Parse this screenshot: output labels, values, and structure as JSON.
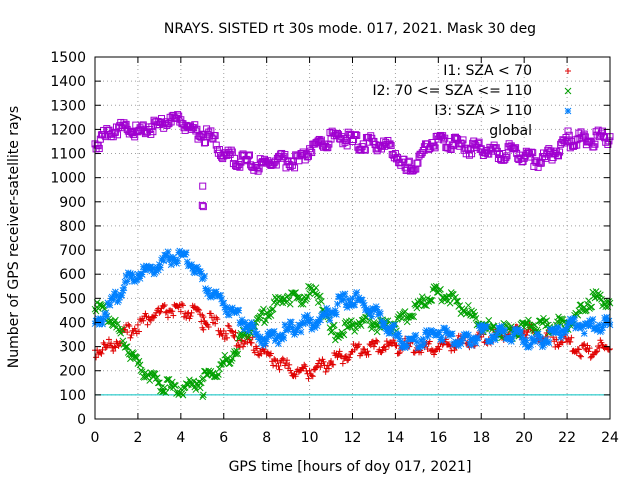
{
  "chart_data": {
    "type": "scatter",
    "title": "NRAYS. SISTED rt 30s mode. 017, 2021. Mask 30 deg",
    "xlabel": "GPS time [hours of doy 017, 2021]",
    "ylabel": "Number of GPS receiver-satellite rays",
    "xlim": [
      0,
      24
    ],
    "ylim": [
      0,
      1500
    ],
    "x_ticks": [
      "0",
      "2",
      "4",
      "6",
      "8",
      "10",
      "12",
      "14",
      "16",
      "18",
      "20",
      "22",
      "24"
    ],
    "y_ticks": [
      "0",
      "100",
      "200",
      "300",
      "400",
      "500",
      "600",
      "700",
      "800",
      "900",
      "1000",
      "1100",
      "1200",
      "1300",
      "1400",
      "1500"
    ],
    "grid": true,
    "legend_position": "top-right",
    "reference_line": {
      "y": 100,
      "color": "#00c0c0"
    },
    "x": [
      0,
      0.5,
      1,
      1.5,
      2,
      2.5,
      3,
      3.5,
      4,
      4.5,
      5,
      5.5,
      6,
      6.5,
      7,
      7.5,
      8,
      8.5,
      9,
      9.5,
      10,
      10.5,
      11,
      11.5,
      12,
      12.5,
      13,
      13.5,
      14,
      14.5,
      15,
      15.5,
      16,
      16.5,
      17,
      17.5,
      18,
      18.5,
      19,
      19.5,
      20,
      20.5,
      21,
      21.5,
      22,
      22.5,
      23,
      23.5,
      24
    ],
    "series": [
      {
        "name": "I1: SZA < 70",
        "color": "#e00000",
        "marker": "+",
        "values": [
          285,
          295,
          320,
          360,
          390,
          420,
          440,
          450,
          445,
          440,
          430,
          400,
          365,
          340,
          320,
          300,
          270,
          240,
          210,
          195,
          200,
          215,
          240,
          260,
          280,
          290,
          300,
          300,
          305,
          300,
          295,
          290,
          300,
          310,
          320,
          330,
          340,
          345,
          355,
          360,
          365,
          360,
          340,
          330,
          320,
          290,
          280,
          295,
          290
        ]
      },
      {
        "name": "I2: 70 <= SZA <= 110",
        "color": "#00a000",
        "marker": "x",
        "values": [
          455,
          440,
          380,
          300,
          230,
          180,
          150,
          130,
          125,
          140,
          165,
          190,
          230,
          280,
          350,
          400,
          440,
          480,
          510,
          500,
          520,
          510,
          360,
          360,
          390,
          410,
          400,
          380,
          395,
          420,
          460,
          500,
          525,
          510,
          470,
          430,
          390,
          370,
          365,
          365,
          380,
          390,
          385,
          390,
          400,
          430,
          490,
          500,
          480
        ]
      },
      {
        "name": "I3: SZA > 110",
        "color": "#0080ff",
        "marker": "*",
        "values": [
          395,
          440,
          510,
          570,
          600,
          620,
          640,
          670,
          680,
          640,
          580,
          510,
          480,
          440,
          400,
          350,
          330,
          340,
          370,
          390,
          400,
          410,
          440,
          490,
          500,
          480,
          450,
          400,
          350,
          310,
          320,
          340,
          360,
          345,
          320,
          330,
          360,
          345,
          360,
          350,
          330,
          320,
          330,
          360,
          380,
          390,
          385,
          390,
          390
        ]
      },
      {
        "name": "global",
        "color": "#a000d0",
        "marker": "square",
        "values": [
          1140,
          1170,
          1210,
          1200,
          1190,
          1210,
          1220,
          1250,
          1240,
          1200,
          1180,
          1160,
          1090,
          1080,
          1070,
          1050,
          1060,
          1080,
          1070,
          1070,
          1120,
          1150,
          1160,
          1170,
          1150,
          1140,
          1150,
          1130,
          1100,
          1030,
          1060,
          1140,
          1160,
          1150,
          1130,
          1120,
          1120,
          1110,
          1100,
          1120,
          1080,
          1070,
          1080,
          1110,
          1150,
          1160,
          1150,
          1170,
          1170
        ]
      }
    ],
    "outliers": [
      {
        "series": "I1: SZA < 70",
        "x": 5.05,
        "y": 370
      },
      {
        "series": "I1: SZA < 70",
        "x": 5.0,
        "y": 378
      },
      {
        "series": "I2: 70 <= SZA <= 110",
        "x": 5.02,
        "y": 92
      },
      {
        "series": "I2: 70 <= SZA <= 110",
        "x": 5.05,
        "y": 100
      },
      {
        "series": "global",
        "x": 5.02,
        "y": 965
      },
      {
        "series": "global",
        "x": 5.0,
        "y": 885
      },
      {
        "series": "global",
        "x": 5.05,
        "y": 880
      }
    ]
  }
}
